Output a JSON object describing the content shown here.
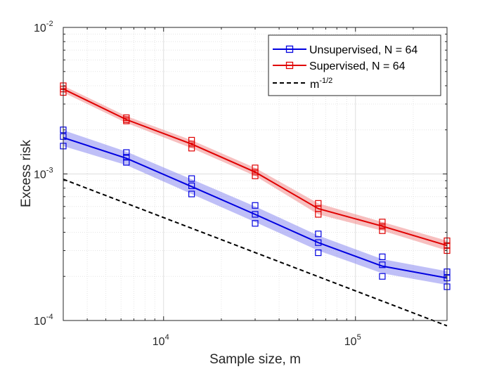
{
  "chart_data": {
    "type": "line",
    "xscale": "log",
    "yscale": "log",
    "xlabel": "Sample size, m",
    "ylabel": "Excess risk",
    "xlim": [
      3000,
      300000
    ],
    "ylim": [
      0.0001,
      0.01
    ],
    "grid": true,
    "minor_grid": true,
    "legend_position": "top-right",
    "x_ticks": [
      {
        "value": 10000,
        "base": "10",
        "exp": "4"
      },
      {
        "value": 100000,
        "base": "10",
        "exp": "5"
      }
    ],
    "y_ticks": [
      {
        "value": 0.0001,
        "base": "10",
        "exp": "-4"
      },
      {
        "value": 0.001,
        "base": "10",
        "exp": "-3"
      },
      {
        "value": 0.01,
        "base": "10",
        "exp": "-2"
      }
    ],
    "x": [
      3000,
      6400,
      14000,
      30000,
      64000,
      138000,
      300000
    ],
    "series": [
      {
        "name": "Unsupervised, N = 64",
        "color": "#0000e0",
        "band_color": "#8080f0",
        "values": [
          0.00177,
          0.00128,
          0.00082,
          0.00053,
          0.00034,
          0.000235,
          0.000195
        ],
        "band_low": [
          0.00155,
          0.00115,
          0.00073,
          0.00047,
          0.0003,
          0.00021,
          0.000175
        ],
        "band_high": [
          0.00199,
          0.00142,
          0.00092,
          0.0006,
          0.00038,
          0.000262,
          0.000217
        ],
        "markers": [
          [
            0.00155,
            0.0018,
            0.002
          ],
          [
            0.0012,
            0.0013,
            0.0014
          ],
          [
            0.00073,
            0.00083,
            0.00093
          ],
          [
            0.00046,
            0.00053,
            0.00061
          ],
          [
            0.00029,
            0.00034,
            0.00039
          ],
          [
            0.0002,
            0.00024,
            0.000272
          ],
          [
            0.00017,
            0.000195,
            0.000215
          ]
        ]
      },
      {
        "name": "Supervised, N = 64",
        "color": "#e00000",
        "band_color": "#f08080",
        "values": [
          0.0038,
          0.00235,
          0.0016,
          0.00103,
          0.00058,
          0.00044,
          0.000325
        ],
        "band_low": [
          0.0036,
          0.00223,
          0.0015,
          0.00097,
          0.00053,
          0.00041,
          0.0003
        ],
        "band_high": [
          0.004,
          0.00248,
          0.0017,
          0.0011,
          0.00063,
          0.00047,
          0.00035
        ],
        "markers": [
          [
            0.0036,
            0.0038,
            0.004
          ],
          [
            0.0023,
            0.00235,
            0.00242
          ],
          [
            0.0015,
            0.0016,
            0.0017
          ],
          [
            0.00097,
            0.00103,
            0.0011
          ],
          [
            0.00053,
            0.00058,
            0.00063
          ],
          [
            0.00041,
            0.00044,
            0.00047
          ],
          [
            0.0003,
            0.000325,
            0.00035
          ]
        ]
      },
      {
        "name": "m",
        "name_sup": "-1/2",
        "color": "#000000",
        "style": "dashed",
        "x": [
          3000,
          300000
        ],
        "values": [
          0.00092,
          9.2e-05
        ]
      }
    ]
  }
}
